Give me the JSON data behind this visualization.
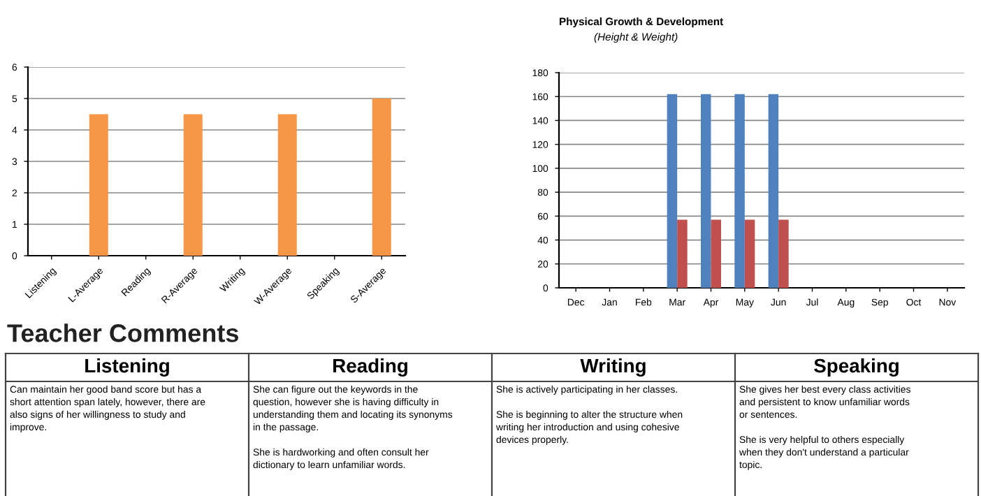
{
  "chart_data": [
    {
      "type": "bar",
      "categories": [
        "Listening",
        "L-Average",
        "Reading",
        "R-Average",
        "Writing",
        "W-Average",
        "Speaking",
        "S-Average"
      ],
      "series": [
        {
          "color": "#f79646",
          "values": [
            null,
            4.5,
            null,
            4.5,
            null,
            4.5,
            null,
            5
          ]
        }
      ],
      "ylim": [
        0,
        6
      ],
      "yticks": [
        0,
        1,
        2,
        3,
        4,
        5,
        6
      ],
      "grid": "y",
      "legend": false
    },
    {
      "type": "bar",
      "title": "Physical Growth & Development",
      "subtitle": "(Height & Weight)",
      "categories": [
        "Dec",
        "Jan",
        "Feb",
        "Mar",
        "Apr",
        "May",
        "Jun",
        "Jul",
        "Aug",
        "Sep",
        "Oct",
        "Nov"
      ],
      "series": [
        {
          "color": "#4f81bd",
          "values": [
            null,
            null,
            null,
            162,
            162,
            162,
            162,
            null,
            null,
            null,
            null,
            null
          ]
        },
        {
          "color": "#c0504d",
          "values": [
            null,
            null,
            null,
            57,
            57,
            57,
            57,
            null,
            null,
            null,
            null,
            null
          ]
        }
      ],
      "ylim": [
        0,
        180
      ],
      "yticks": [
        0,
        20,
        40,
        60,
        80,
        100,
        120,
        140,
        160,
        180
      ],
      "grid": "y",
      "legend": false
    },
    {
      "type": "other",
      "title": "Teacher Comments",
      "categories": [
        "Listening",
        "Reading",
        "Writing",
        "Speaking"
      ],
      "annotations": [
        "Can maintain her good band score but has a\nshort attention span lately, however, there are\nalso signs of her willingness to study and\nimprove.",
        "She can figure out the keywords in the\nquestion, however she is having difficulty in\nunderstanding them and locating its synonyms\nin the passage.\n\nShe is hardworking and often consult her\ndictionary to learn unfamiliar words.",
        "She is actively participating in her classes.\n\nShe is beginning to alter the structure when\nwriting her introduction and using cohesive\ndevices properly.",
        "She gives her best every class activities\nand persistent to know unfamiliar words\nor sentences.\n\nShe is very helpful to others especially\nwhen they don't understand a particular\ntopic."
      ]
    }
  ]
}
